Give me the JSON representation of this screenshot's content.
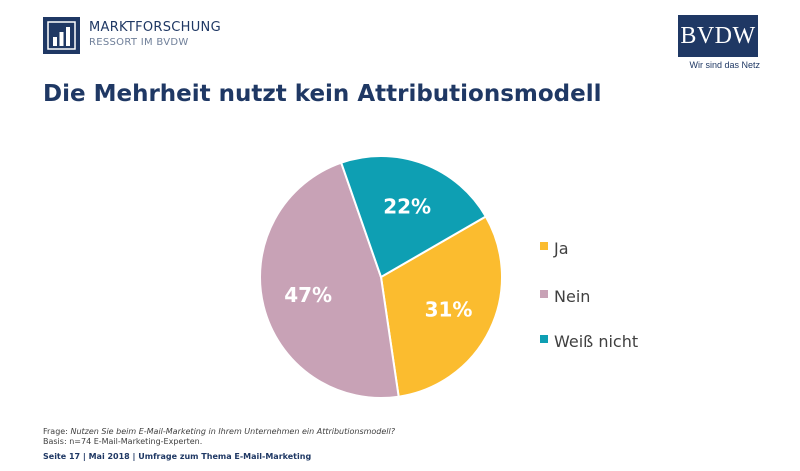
{
  "header": {
    "brand_title": "MARKTFORSCHUNG",
    "brand_subtitle": "RESSORT IM BVDW",
    "org_logo_text": "BVDW",
    "org_tagline": "Wir sind das Netz"
  },
  "page_title": "Die Mehrheit nutzt kein Attributionsmodell",
  "chart_data": {
    "type": "pie",
    "title": "Die Mehrheit nutzt kein Attributionsmodell",
    "categories": [
      "Ja",
      "Nein",
      "Weiß nicht"
    ],
    "values": [
      31,
      47,
      22
    ],
    "value_labels": [
      "31%",
      "47%",
      "22%"
    ],
    "colors": [
      "#fbbc2f",
      "#c8a2b6",
      "#0e9fb3"
    ],
    "legend_position": "right",
    "start_angle_deg": 60
  },
  "footnotes": {
    "question_prefix": "Frage:",
    "question_text": "Nutzen Sie beim E-Mail-Marketing in Ihrem Unternehmen ein Attributionsmodell?",
    "basis_prefix": "Basis:",
    "basis_text": "n=74 E-Mail-Marketing-Experten."
  },
  "footer": {
    "text": "Seite 17 | Mai 2018 | Umfrage zum Thema E-Mail-Marketing"
  }
}
